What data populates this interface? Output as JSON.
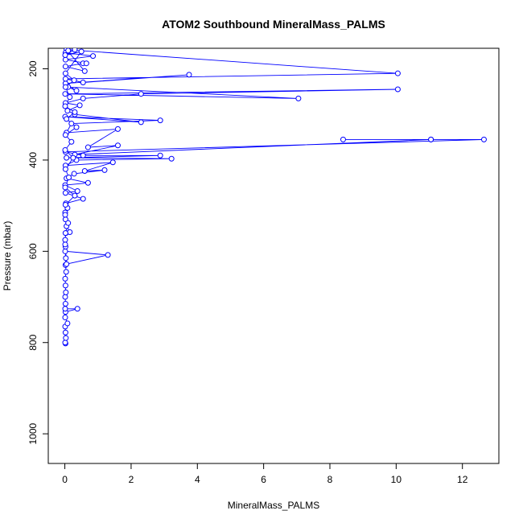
{
  "chart_data": {
    "type": "line",
    "title": "ATOM2 Southbound MineralMass_PALMS",
    "xlabel": "MineralMass_PALMS",
    "ylabel": "Pressure (mbar)",
    "xlim": [
      -0.5,
      13.1
    ],
    "ylim": [
      1065,
      155
    ],
    "y_axis_inverted": true,
    "x_ticks": [
      0,
      2,
      4,
      6,
      8,
      10,
      12
    ],
    "y_ticks": [
      200,
      400,
      600,
      800,
      1000
    ],
    "markers": "open-circle",
    "line_style": "solid",
    "grid": false,
    "legend": "none",
    "series": [
      {
        "color": "#0000ff",
        "points": [
          [
            0.02,
            802
          ],
          [
            0.01,
            800
          ],
          [
            0.03,
            790
          ],
          [
            0.02,
            778
          ],
          [
            0.01,
            765
          ],
          [
            0.08,
            758
          ],
          [
            0.01,
            745
          ],
          [
            0.02,
            733
          ],
          [
            0.38,
            726
          ],
          [
            0.01,
            726
          ],
          [
            0.02,
            715
          ],
          [
            0.01,
            700
          ],
          [
            0.03,
            690
          ],
          [
            0.02,
            675
          ],
          [
            0.01,
            660
          ],
          [
            0.04,
            645
          ],
          [
            0.02,
            630
          ],
          [
            0.03,
            615
          ],
          [
            0.01,
            600
          ],
          [
            1.3,
            608
          ],
          [
            0.05,
            628
          ],
          [
            0.02,
            590
          ],
          [
            0.01,
            575
          ],
          [
            0.03,
            560
          ],
          [
            0.15,
            558
          ],
          [
            0.05,
            545
          ],
          [
            0.02,
            530
          ],
          [
            0.01,
            515
          ],
          [
            0.08,
            505
          ],
          [
            0.03,
            495
          ],
          [
            0.55,
            485
          ],
          [
            0.02,
            472
          ],
          [
            0.38,
            468
          ],
          [
            0.01,
            455
          ],
          [
            0.7,
            450
          ],
          [
            0.05,
            440
          ],
          [
            0.28,
            430
          ],
          [
            1.2,
            422
          ],
          [
            0.6,
            424
          ],
          [
            1.45,
            405
          ],
          [
            0.02,
            412
          ],
          [
            0.35,
            400
          ],
          [
            3.22,
            397
          ],
          [
            0.05,
            395
          ],
          [
            2.88,
            390
          ],
          [
            0.55,
            390
          ],
          [
            0.02,
            382
          ],
          [
            12.65,
            355
          ],
          [
            11.05,
            355
          ],
          [
            8.4,
            355
          ],
          [
            11.05,
            355
          ],
          [
            0.3,
            388
          ],
          [
            1.6,
            368
          ],
          [
            0.7,
            372
          ],
          [
            1.6,
            332
          ],
          [
            0.05,
            340
          ],
          [
            0.2,
            320
          ],
          [
            2.88,
            313
          ],
          [
            0.01,
            305
          ],
          [
            2.3,
            317
          ],
          [
            0.3,
            300
          ],
          [
            0.08,
            292
          ],
          [
            0.45,
            280
          ],
          [
            0.02,
            275
          ],
          [
            0.55,
            265
          ],
          [
            2.3,
            255
          ],
          [
            10.05,
            245
          ],
          [
            0.01,
            255
          ],
          [
            7.05,
            265
          ],
          [
            0.1,
            240
          ],
          [
            0.35,
            248
          ],
          [
            0.02,
            232
          ],
          [
            3.75,
            213
          ],
          [
            0.55,
            230
          ],
          [
            0.02,
            222
          ],
          [
            10.05,
            210
          ],
          [
            0.05,
            158
          ],
          [
            0.6,
            205
          ],
          [
            0.02,
            195
          ],
          [
            0.55,
            188
          ],
          [
            0.65,
            188
          ],
          [
            0.02,
            180
          ],
          [
            0.85,
            172
          ],
          [
            0.02,
            165
          ],
          [
            0.1,
            160
          ],
          [
            0.3,
            158
          ],
          [
            0.01,
            170
          ],
          [
            0.5,
            162
          ],
          [
            0.02,
            210
          ],
          [
            0.28,
            225
          ],
          [
            0.02,
            240
          ],
          [
            0.15,
            262
          ],
          [
            0.01,
            282
          ],
          [
            0.3,
            295
          ],
          [
            0.05,
            310
          ],
          [
            0.35,
            328
          ],
          [
            0.02,
            345
          ],
          [
            0.2,
            360
          ],
          [
            0.01,
            378
          ],
          [
            0.25,
            395
          ],
          [
            0.02,
            420
          ],
          [
            0.12,
            438
          ],
          [
            0.01,
            460
          ],
          [
            0.3,
            478
          ],
          [
            0.02,
            498
          ],
          [
            0.01,
            520
          ],
          [
            0.1,
            538
          ],
          [
            0.02,
            560
          ],
          [
            0.01,
            585
          ]
        ]
      }
    ]
  }
}
